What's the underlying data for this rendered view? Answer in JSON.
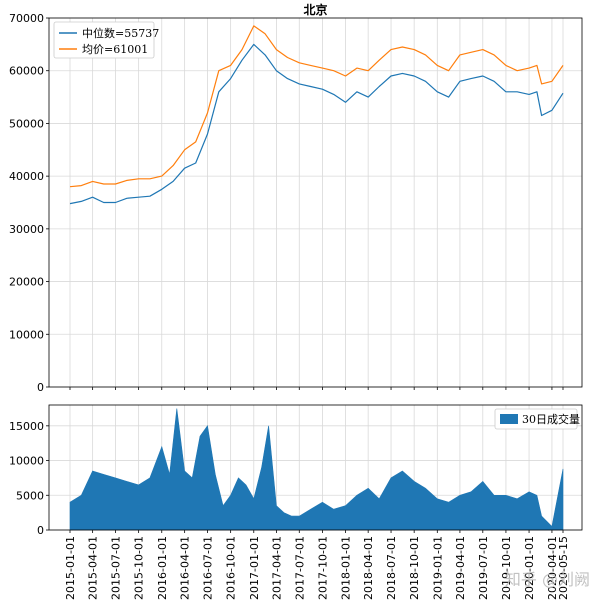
{
  "chart_data": [
    {
      "type": "line",
      "title": "北京",
      "x_dates": [
        "2015-01-01",
        "2015-02-15",
        "2015-04-01",
        "2015-05-15",
        "2015-07-01",
        "2015-08-15",
        "2015-10-01",
        "2015-11-15",
        "2016-01-01",
        "2016-02-15",
        "2016-04-01",
        "2016-05-15",
        "2016-07-01",
        "2016-08-15",
        "2016-10-01",
        "2016-11-15",
        "2017-01-01",
        "2017-02-15",
        "2017-04-01",
        "2017-05-15",
        "2017-07-01",
        "2017-08-15",
        "2017-10-01",
        "2017-11-15",
        "2018-01-01",
        "2018-02-15",
        "2018-04-01",
        "2018-05-15",
        "2018-07-01",
        "2018-08-15",
        "2018-10-01",
        "2018-11-15",
        "2019-01-01",
        "2019-02-15",
        "2019-04-01",
        "2019-05-15",
        "2019-07-01",
        "2019-08-15",
        "2019-10-01",
        "2019-11-15",
        "2020-01-01",
        "2020-02-01",
        "2020-02-20",
        "2020-04-01",
        "2020-05-15"
      ],
      "series": [
        {
          "name": "中位数=55737",
          "color": "#1f77b4",
          "values": [
            34800,
            35200,
            36000,
            35000,
            35000,
            35800,
            36000,
            36200,
            37500,
            39000,
            41500,
            42500,
            48000,
            56000,
            58500,
            62000,
            65000,
            63000,
            60000,
            58500,
            57500,
            57000,
            56500,
            55500,
            54000,
            56000,
            55000,
            57000,
            59000,
            59500,
            59000,
            58000,
            56000,
            55000,
            58000,
            58500,
            59000,
            58000,
            56000,
            56000,
            55500,
            56000,
            51500,
            52500,
            55737
          ]
        },
        {
          "name": "均价=61001",
          "color": "#ff7f0e",
          "values": [
            38000,
            38200,
            39000,
            38500,
            38500,
            39200,
            39500,
            39500,
            40000,
            42000,
            45000,
            46500,
            52000,
            60000,
            61000,
            64000,
            68500,
            67000,
            64000,
            62500,
            61500,
            61000,
            60500,
            60000,
            59000,
            60500,
            60000,
            62000,
            64000,
            64500,
            64000,
            63000,
            61000,
            60000,
            63000,
            63500,
            64000,
            63000,
            61000,
            60000,
            60500,
            61000,
            57500,
            58000,
            61001
          ]
        }
      ],
      "y_ticks": [
        0,
        10000,
        20000,
        30000,
        40000,
        50000,
        60000,
        70000
      ],
      "ylim": [
        0,
        70000
      ],
      "legend": "top-left",
      "grid": true
    },
    {
      "type": "area",
      "x_dates": [
        "2015-01-01",
        "2015-02-15",
        "2015-04-01",
        "2015-05-15",
        "2015-07-01",
        "2015-08-15",
        "2015-10-01",
        "2015-11-15",
        "2016-01-01",
        "2016-02-01",
        "2016-03-01",
        "2016-04-01",
        "2016-05-01",
        "2016-06-01",
        "2016-07-01",
        "2016-08-01",
        "2016-09-01",
        "2016-10-01",
        "2016-11-01",
        "2016-12-01",
        "2017-01-01",
        "2017-02-01",
        "2017-03-01",
        "2017-04-01",
        "2017-05-01",
        "2017-06-01",
        "2017-07-01",
        "2017-08-15",
        "2017-10-01",
        "2017-11-15",
        "2018-01-01",
        "2018-02-15",
        "2018-04-01",
        "2018-05-15",
        "2018-07-01",
        "2018-08-15",
        "2018-10-01",
        "2018-11-15",
        "2019-01-01",
        "2019-02-15",
        "2019-04-01",
        "2019-05-15",
        "2019-07-01",
        "2019-08-15",
        "2019-10-01",
        "2019-11-15",
        "2020-01-01",
        "2020-02-01",
        "2020-02-20",
        "2020-04-01",
        "2020-05-15"
      ],
      "series": [
        {
          "name": "30日成交量",
          "color": "#1f77b4",
          "values": [
            4000,
            5000,
            8500,
            8000,
            7500,
            7000,
            6500,
            7500,
            12000,
            8000,
            17500,
            8500,
            7500,
            13500,
            15000,
            8000,
            3500,
            5000,
            7500,
            6500,
            4500,
            9000,
            15000,
            3500,
            2500,
            2000,
            2000,
            3000,
            4000,
            3000,
            3500,
            5000,
            6000,
            4500,
            7500,
            8500,
            7000,
            6000,
            4500,
            4000,
            5000,
            5500,
            7000,
            5000,
            5000,
            4500,
            5500,
            5000,
            2000,
            500,
            8800
          ]
        }
      ],
      "y_ticks": [
        0,
        5000,
        10000,
        15000
      ],
      "ylim": [
        0,
        18000
      ],
      "legend": "top-right",
      "grid": true
    }
  ],
  "x_tick_labels": [
    "2015-01-01",
    "2015-04-01",
    "2015-07-01",
    "2015-10-01",
    "2016-01-01",
    "2016-04-01",
    "2016-07-01",
    "2016-10-01",
    "2017-01-01",
    "2017-04-01",
    "2017-07-01",
    "2017-10-01",
    "2018-01-01",
    "2018-04-01",
    "2018-07-01",
    "2018-10-01",
    "2019-01-01",
    "2019-04-01",
    "2019-07-01",
    "2019-10-01",
    "2020-01-01",
    "2020-04-01",
    "2020-05-15"
  ],
  "watermark": "知乎 @刘阙"
}
